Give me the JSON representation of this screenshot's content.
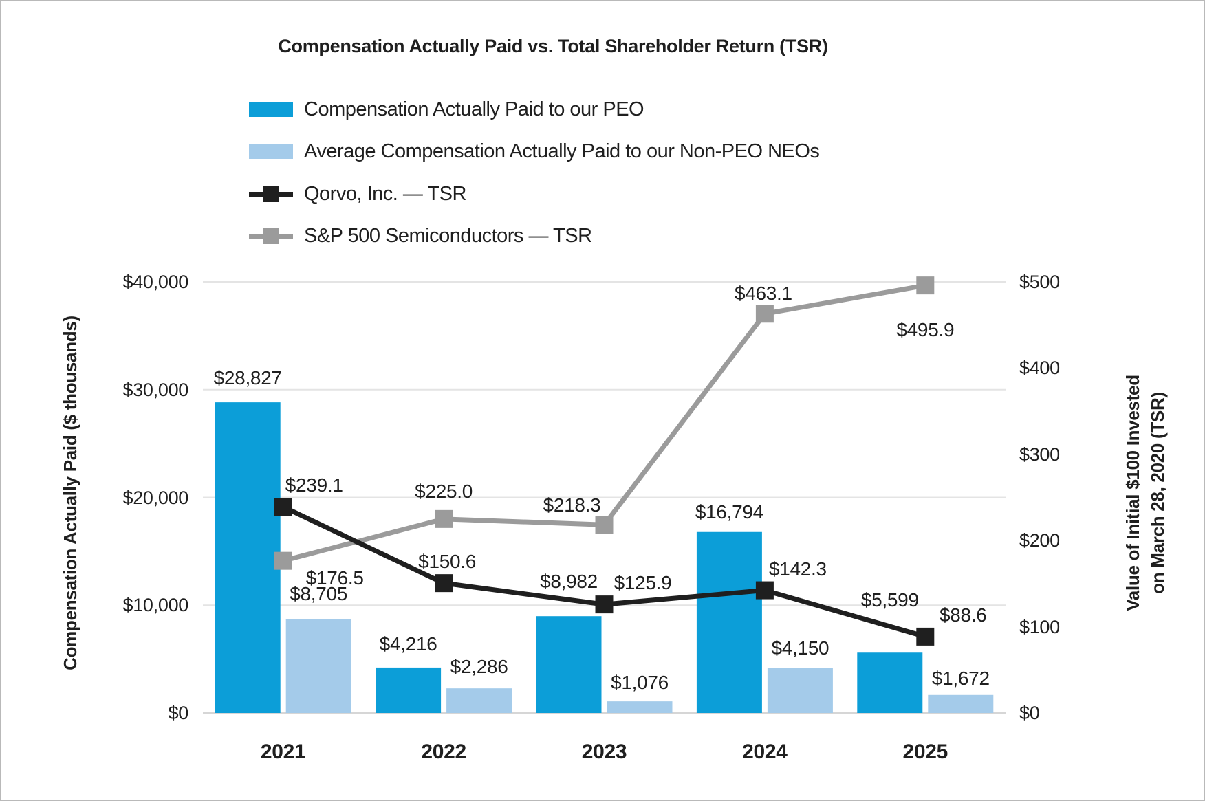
{
  "title": "Compensation Actually Paid vs. Total Shareholder Return (TSR)",
  "chart_data": {
    "type": "bar+line",
    "categories": [
      "2021",
      "2022",
      "2023",
      "2024",
      "2025"
    ],
    "bar_series": [
      {
        "name": "Compensation Actually Paid to our PEO",
        "axis": "left",
        "color": "#0c9ed8",
        "values": [
          28827,
          4216,
          8982,
          16794,
          5599
        ],
        "labels": [
          "$28,827",
          "$4,216",
          "$8,982",
          "$16,794",
          "$5,599"
        ]
      },
      {
        "name": "Average Compensation Actually Paid to our Non-PEO NEOs",
        "axis": "left",
        "color": "#a4cbea",
        "values": [
          8705,
          2286,
          1076,
          4150,
          1672
        ],
        "labels": [
          "$8,705",
          "$2,286",
          "$1,076",
          "$4,150",
          "$1,672"
        ]
      }
    ],
    "line_series": [
      {
        "name": "Qorvo, Inc. — TSR",
        "axis": "right",
        "color": "#1f1f1f",
        "marker": "square",
        "values": [
          239.1,
          150.6,
          125.9,
          142.3,
          88.6
        ],
        "labels": [
          "$239.1",
          "$150.6",
          "$125.9",
          "$142.3",
          "$88.6"
        ]
      },
      {
        "name": "S&P 500 Semiconductors — TSR",
        "axis": "right",
        "color": "#9b9b9b",
        "marker": "square",
        "values": [
          176.5,
          225.0,
          218.3,
          463.1,
          495.9
        ],
        "labels": [
          "$176.5",
          "$225.0",
          "$218.3",
          "$463.1",
          "$495.9"
        ]
      }
    ],
    "left_axis": {
      "title": "Compensation Actually Paid ($ thousands)",
      "ticks": [
        "$0",
        "$10,000",
        "$20,000",
        "$30,000",
        "$40,000"
      ],
      "min": 0,
      "max": 40000
    },
    "right_axis": {
      "title_line1": "Value of Initial $100 Invested",
      "title_line2": "on March 28, 2020 (TSR)",
      "ticks": [
        "$0",
        "$100",
        "$200",
        "$300",
        "$400",
        "$500"
      ],
      "min": 0,
      "max": 500
    },
    "gridlines": true,
    "legend_position": "top-left",
    "colors": {
      "gridline": "#e4e4e4",
      "axis_line": "#d6d6d6",
      "text": "#1f1f1f",
      "background": "#ffffff",
      "border": "#b9b9b9"
    }
  }
}
